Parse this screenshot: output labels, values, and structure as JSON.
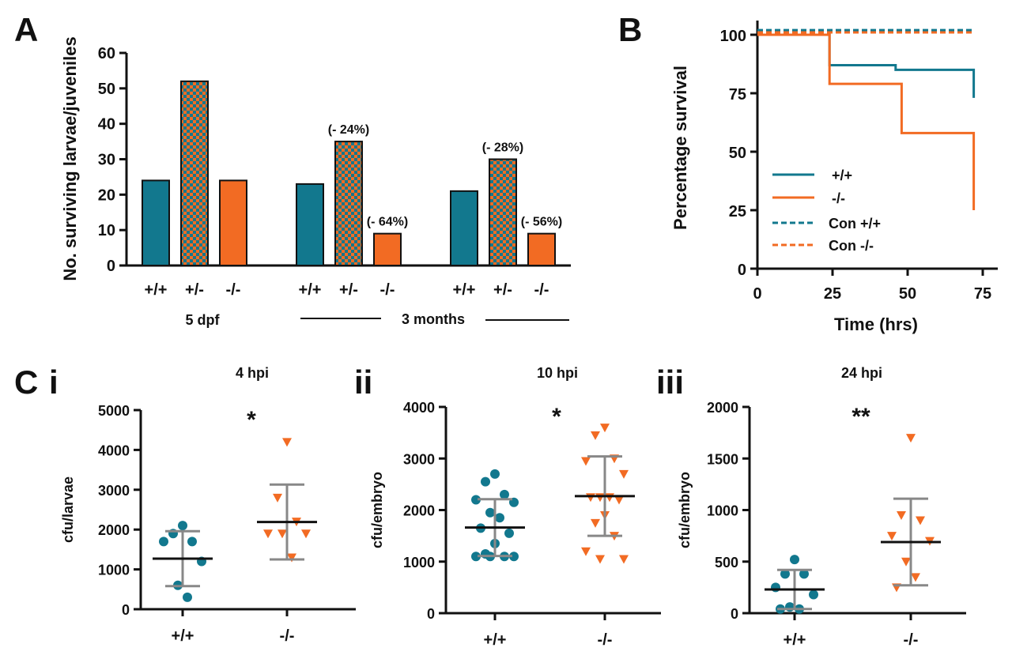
{
  "colors": {
    "teal": "#12788e",
    "orange": "#f26b23",
    "grey": "#888888",
    "axis": "#111111"
  },
  "panels": {
    "a": "A",
    "b": "B",
    "c": "C"
  },
  "chart_data": [
    {
      "id": "A",
      "type": "bar",
      "ylabel": "No. surviving larvae/juveniles",
      "ylim": [
        0,
        60
      ],
      "yticks": [
        0,
        10,
        20,
        30,
        40,
        50,
        60
      ],
      "groups": [
        {
          "label": "5 dpf",
          "bars": [
            {
              "genotype": "+/+",
              "value": 24,
              "fill": "teal"
            },
            {
              "genotype": "+/-",
              "value": 52,
              "fill": "checker"
            },
            {
              "genotype": "-/-",
              "value": 24,
              "fill": "orange"
            }
          ]
        },
        {
          "label": "3 months",
          "bars": [
            {
              "genotype": "+/+",
              "value": 23,
              "fill": "teal"
            },
            {
              "genotype": "+/-",
              "value": 35,
              "fill": "checker",
              "annotation": "(- 24%)"
            },
            {
              "genotype": "-/-",
              "value": 9,
              "fill": "orange",
              "annotation": "(- 64%)"
            }
          ]
        },
        {
          "label": "",
          "bars": [
            {
              "genotype": "+/+",
              "value": 21,
              "fill": "teal"
            },
            {
              "genotype": "+/-",
              "value": 30,
              "fill": "checker",
              "annotation": "(- 28%)"
            },
            {
              "genotype": "-/-",
              "value": 9,
              "fill": "orange",
              "annotation": "(- 56%)"
            }
          ]
        }
      ]
    },
    {
      "id": "B",
      "type": "line",
      "xlabel": "Time (hrs)",
      "ylabel": "Percentage  survival",
      "xlim": [
        0,
        80
      ],
      "ylim": [
        0,
        100
      ],
      "xticks": [
        0,
        25,
        50,
        75
      ],
      "yticks": [
        0,
        25,
        50,
        75,
        100
      ],
      "series": [
        {
          "name": "+/+",
          "color": "teal",
          "dashed": false,
          "points": [
            [
              0,
              100
            ],
            [
              24,
              100
            ],
            [
              24,
              87
            ],
            [
              46,
              87
            ],
            [
              46,
              85
            ],
            [
              72,
              85
            ],
            [
              72,
              73
            ]
          ]
        },
        {
          "name": "-/-",
          "color": "orange",
          "dashed": false,
          "points": [
            [
              0,
              100
            ],
            [
              24,
              100
            ],
            [
              24,
              79
            ],
            [
              48,
              79
            ],
            [
              48,
              58
            ],
            [
              72,
              58
            ],
            [
              72,
              25
            ]
          ]
        },
        {
          "name": "Con +/+",
          "color": "teal",
          "dashed": true,
          "points": [
            [
              0,
              102
            ],
            [
              72,
              102
            ]
          ]
        },
        {
          "name": "Con -/-",
          "color": "orange",
          "dashed": true,
          "points": [
            [
              0,
              101
            ],
            [
              72,
              101
            ]
          ]
        }
      ]
    },
    {
      "id": "Ci",
      "type": "scatter",
      "label": "i",
      "title": "4 hpi",
      "ylabel": "cfu/larvae",
      "ylim": [
        0,
        5000
      ],
      "yticks": [
        0,
        1000,
        2000,
        3000,
        4000,
        5000
      ],
      "significance": "*",
      "categories": [
        "+/+",
        "-/-"
      ],
      "series": [
        {
          "name": "+/+",
          "marker": "circle",
          "color": "teal",
          "values": [
            2100,
            1900,
            1700,
            1700,
            1200,
            600,
            300
          ],
          "mean": 1270,
          "sd_low": 580,
          "sd_high": 1960
        },
        {
          "name": "-/-",
          "marker": "triangle",
          "color": "orange",
          "values": [
            4200,
            2800,
            2200,
            1900,
            1900,
            1900,
            1300
          ],
          "mean": 2190,
          "sd_low": 1250,
          "sd_high": 3130
        }
      ]
    },
    {
      "id": "Cii",
      "type": "scatter",
      "label": "ii",
      "title": "10 hpi",
      "ylabel": "cfu/embryo",
      "ylim": [
        0,
        4000
      ],
      "yticks": [
        0,
        1000,
        2000,
        3000,
        4000
      ],
      "significance": "*",
      "categories": [
        "+/+",
        "-/-"
      ],
      "series": [
        {
          "name": "+/+",
          "marker": "circle",
          "color": "teal",
          "values": [
            2700,
            2550,
            2300,
            2200,
            2150,
            1950,
            1850,
            1650,
            1550,
            1350,
            1150,
            1100,
            1100,
            1100,
            1100
          ],
          "mean": 1660,
          "sd_low": 1110,
          "sd_high": 2210
        },
        {
          "name": "-/-",
          "marker": "triangle",
          "color": "orange",
          "values": [
            3600,
            3450,
            3000,
            2950,
            2700,
            2250,
            2250,
            2250,
            2200,
            1900,
            1750,
            1500,
            1200,
            1050,
            1050
          ],
          "mean": 2270,
          "sd_low": 1500,
          "sd_high": 3040
        }
      ]
    },
    {
      "id": "Ciii",
      "type": "scatter",
      "label": "iii",
      "title": "24 hpi",
      "ylabel": "cfu/embryo",
      "ylim": [
        0,
        2000
      ],
      "yticks": [
        0,
        500,
        1000,
        1500,
        2000
      ],
      "significance": "**",
      "categories": [
        "+/+",
        "-/-"
      ],
      "series": [
        {
          "name": "+/+",
          "marker": "circle",
          "color": "teal",
          "values": [
            520,
            380,
            380,
            250,
            180,
            60,
            40,
            40
          ],
          "mean": 230,
          "sd_low": 40,
          "sd_high": 420
        },
        {
          "name": "-/-",
          "marker": "triangle",
          "color": "orange",
          "values": [
            1700,
            950,
            900,
            750,
            700,
            500,
            350,
            250
          ],
          "mean": 690,
          "sd_low": 270,
          "sd_high": 1110
        }
      ]
    }
  ]
}
